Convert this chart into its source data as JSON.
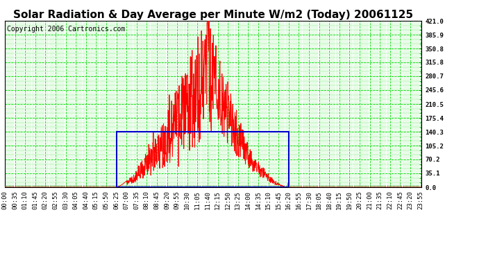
{
  "title": "Solar Radiation & Day Average per Minute W/m2 (Today) 20061125",
  "copyright": "Copyright 2006 Cartronics.com",
  "yticks": [
    0.0,
    35.1,
    70.2,
    105.2,
    140.3,
    175.4,
    210.5,
    245.6,
    280.7,
    315.8,
    350.8,
    385.9,
    421.0
  ],
  "ymax": 421.0,
  "ymin": 0.0,
  "bg_color": "#ffffff",
  "plot_bg_color": "#ffffff",
  "grid_color": "#00dd00",
  "red_line_color": "#ff0000",
  "blue_box_color": "#0000cc",
  "title_fontsize": 11,
  "copyright_fontsize": 7,
  "tick_label_fontsize": 6.5,
  "n_minutes": 1440,
  "sunrise_minute": 385,
  "sunset_minute": 980,
  "day_avg": 140.3,
  "solar_peak_minute": 700,
  "solar_peak_value": 421.0,
  "figwidth": 6.9,
  "figheight": 3.75,
  "dpi": 100
}
